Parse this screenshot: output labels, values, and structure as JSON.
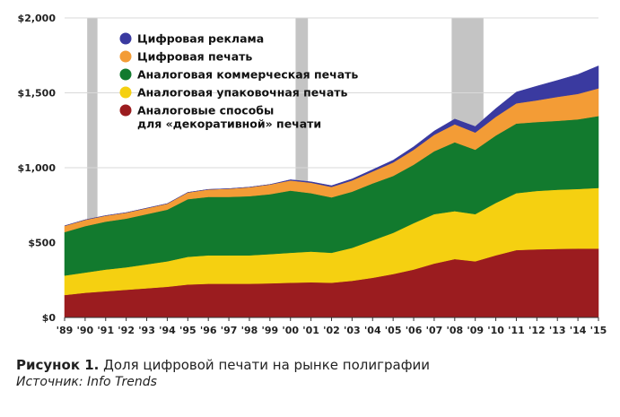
{
  "chart_data": {
    "type": "area",
    "stacked": true,
    "x": [
      "'89",
      "'90",
      "'91",
      "'92",
      "'93",
      "'94",
      "'95",
      "'96",
      "'97",
      "'98",
      "'99",
      "'00",
      "'01",
      "'02",
      "'03",
      "'04",
      "'05",
      "'06",
      "'07",
      "'08",
      "'09",
      "'10",
      "'11",
      "'12",
      "'13",
      "'14",
      "'15"
    ],
    "ylim": [
      0,
      2000
    ],
    "yticks": [
      {
        "value": 0,
        "label": "$0"
      },
      {
        "value": 500,
        "label": "$500"
      },
      {
        "value": 1000,
        "label": "$1,000"
      },
      {
        "value": 1500,
        "label": "$1,500"
      },
      {
        "value": 2000,
        "label": "$2,000"
      }
    ],
    "recessions": [
      [
        1990.1,
        1990.6
      ],
      [
        2000.25,
        2000.85
      ],
      [
        2007.85,
        2009.4
      ]
    ],
    "series": [
      {
        "name": "Аналоговые способы\nдля «декоративной» печати",
        "color": "#9b1c1f",
        "values": [
          150,
          165,
          175,
          185,
          195,
          205,
          220,
          225,
          225,
          225,
          228,
          232,
          235,
          232,
          245,
          265,
          290,
          320,
          360,
          390,
          375,
          415,
          450,
          455,
          458,
          460,
          460
        ]
      },
      {
        "name": "Аналоговая упаковочная печать",
        "color": "#f5d011",
        "values": [
          130,
          135,
          145,
          150,
          160,
          170,
          185,
          190,
          190,
          190,
          195,
          200,
          205,
          200,
          220,
          250,
          275,
          310,
          330,
          320,
          315,
          350,
          380,
          390,
          395,
          398,
          405
        ]
      },
      {
        "name": "Аналоговая коммерческая печать",
        "color": "#127a2e",
        "values": [
          290,
          310,
          320,
          325,
          335,
          345,
          385,
          390,
          390,
          395,
          400,
          415,
          390,
          370,
          375,
          380,
          380,
          390,
          420,
          460,
          430,
          450,
          465,
          460,
          460,
          465,
          480
        ]
      },
      {
        "name": "Цифровая печать",
        "color": "#f39c36",
        "values": [
          42,
          42,
          40,
          40,
          40,
          40,
          45,
          50,
          55,
          60,
          65,
          68,
          70,
          70,
          75,
          80,
          90,
          100,
          110,
          120,
          115,
          125,
          135,
          145,
          160,
          170,
          185
        ]
      },
      {
        "name": "Цифровая реклама",
        "color": "#3a3aa0",
        "values": [
          0,
          0,
          0,
          0,
          0,
          0,
          0,
          0,
          0,
          0,
          0,
          5,
          6,
          8,
          10,
          12,
          15,
          20,
          25,
          35,
          40,
          55,
          75,
          95,
          110,
          130,
          150
        ]
      }
    ],
    "legend_position": "top-left"
  },
  "caption": {
    "figure_number": "Рисунок 1.",
    "figure_text": " Доля цифровой печати на рынке полиграфии",
    "source": "Источник: Info Trends"
  }
}
